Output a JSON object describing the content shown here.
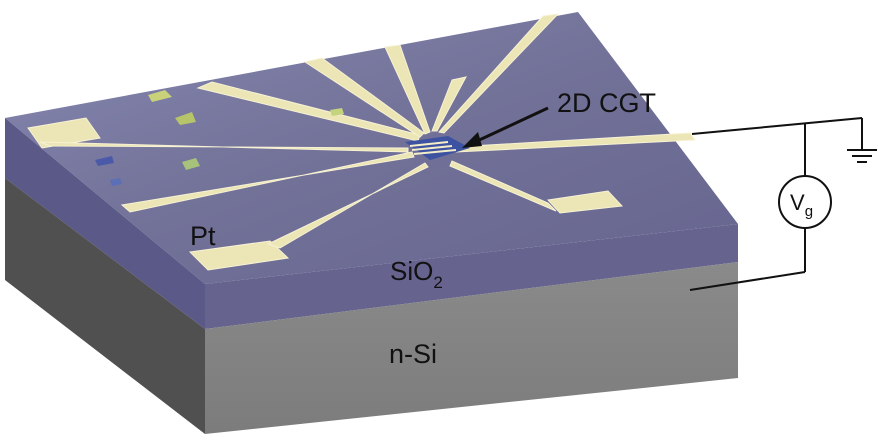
{
  "labels": {
    "flake": "2D CGT",
    "electrode": "Pt",
    "oxide_base": "SiO",
    "oxide_sub": "2",
    "substrate": "n-Si",
    "gate_base": "V",
    "gate_sub": "g"
  },
  "colors": {
    "oxide_top": "#6f6d9a",
    "oxide_side": "#5d5b8a",
    "silicon_front": "#858585",
    "silicon_side": "#4f4f4f",
    "electrode": "#efe9bd",
    "flake": "#3d52a0",
    "wire": "#111111"
  },
  "icons": [
    "ground-icon",
    "voltage-source-icon",
    "arrow-icon"
  ]
}
